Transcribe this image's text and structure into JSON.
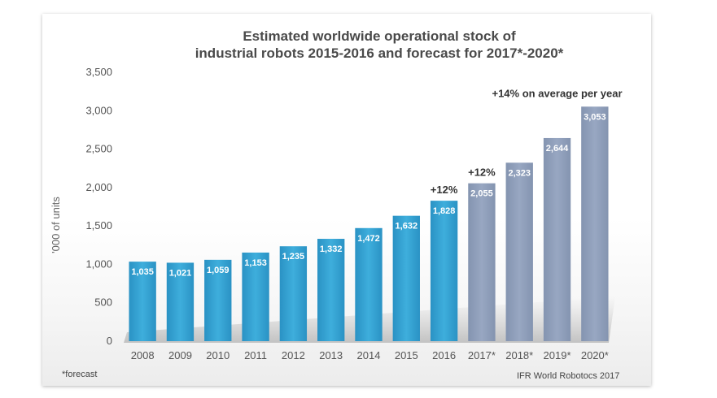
{
  "chart_data": {
    "type": "bar",
    "title_lines": [
      "Estimated worldwide operational stock of",
      "industrial robots 2015-2016 and forecast for 2017*-2020*"
    ],
    "ylabel": "'000 of units",
    "xlabel": "",
    "ylim": [
      0,
      3500
    ],
    "yticks": [
      "0",
      "500",
      "1,000",
      "1,500",
      "2,000",
      "2,500",
      "3,000",
      "3,500"
    ],
    "ytick_values": [
      0,
      500,
      1000,
      1500,
      2000,
      2500,
      3000,
      3500
    ],
    "categories": [
      "2008",
      "2009",
      "2010",
      "2011",
      "2012",
      "2013",
      "2014",
      "2015",
      "2016",
      "2017*",
      "2018*",
      "2019*",
      "2020*"
    ],
    "values": [
      1035,
      1021,
      1059,
      1153,
      1235,
      1332,
      1472,
      1632,
      1828,
      2055,
      2323,
      2644,
      3053
    ],
    "value_labels": [
      "1,035",
      "1,021",
      "1,059",
      "1,153",
      "1,235",
      "1,332",
      "1,472",
      "1,632",
      "1,828",
      "2,055",
      "2,323",
      "2,644",
      "3,053"
    ],
    "forecast_from": "2017*",
    "grid": false,
    "legend": "none",
    "colors": {
      "actual": "#2e9ccf",
      "forecast": "#8b9bb7"
    },
    "annotations": [
      {
        "text": "+12%",
        "category": "2016"
      },
      {
        "text": "+12%",
        "category": "2017*"
      },
      {
        "text": "+14% on average per year",
        "category": "2019*"
      }
    ],
    "footnote": "*forecast",
    "source": "IFR World Robotocs 2017"
  }
}
